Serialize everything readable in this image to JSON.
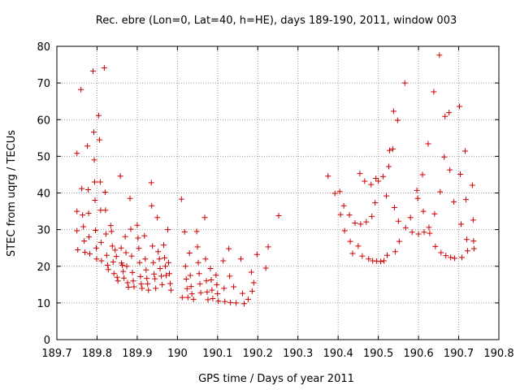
{
  "chart_data": {
    "type": "scatter",
    "title": "Rec. ebre (Lon=0, Lat=40, h=HE), days 189-190, 2011, window 003",
    "xlabel": "GPS time / Days of year 2011",
    "ylabel": "STEC from uqrg / TECUs",
    "xlim": [
      189.7,
      190.8
    ],
    "ylim": [
      0,
      80
    ],
    "xticks": [
      189.7,
      189.8,
      189.9,
      190,
      190.1,
      190.2,
      190.3,
      190.4,
      190.5,
      190.6,
      190.7,
      190.8
    ],
    "xtick_labels": [
      "189.7",
      "189.8",
      "189.9",
      "190",
      "190.1",
      "190.2",
      "190.3",
      "190.4",
      "190.5",
      "190.6",
      "190.7",
      "190.8"
    ],
    "yticks": [
      0,
      10,
      20,
      30,
      40,
      50,
      60,
      70,
      80
    ],
    "ytick_labels": [
      "0",
      "10",
      "20",
      "30",
      "40",
      "50",
      "60",
      "70",
      "80"
    ],
    "grid": true,
    "marker": "+",
    "color": "#cc0000",
    "points": [
      [
        189.75,
        50.8
      ],
      [
        189.75,
        35.0
      ],
      [
        189.75,
        29.7
      ],
      [
        189.752,
        24.5
      ],
      [
        189.76,
        68.2
      ],
      [
        189.762,
        41.2
      ],
      [
        189.764,
        34.0
      ],
      [
        189.766,
        30.8
      ],
      [
        189.768,
        26.9
      ],
      [
        189.77,
        23.8
      ],
      [
        189.776,
        52.8
      ],
      [
        189.778,
        40.9
      ],
      [
        189.779,
        34.5
      ],
      [
        189.78,
        28.0
      ],
      [
        189.782,
        23.4
      ],
      [
        189.79,
        73.2
      ],
      [
        189.792,
        56.6
      ],
      [
        189.793,
        49.0
      ],
      [
        189.794,
        43.0
      ],
      [
        189.795,
        38.0
      ],
      [
        189.796,
        29.8
      ],
      [
        189.798,
        25.0
      ],
      [
        189.799,
        22.0
      ],
      [
        189.804,
        61.1
      ],
      [
        189.806,
        54.5
      ],
      [
        189.808,
        43.0
      ],
      [
        189.809,
        35.3
      ],
      [
        189.81,
        26.5
      ],
      [
        189.811,
        21.5
      ],
      [
        189.818,
        74.1
      ],
      [
        189.82,
        40.2
      ],
      [
        189.821,
        35.3
      ],
      [
        189.822,
        28.8
      ],
      [
        189.824,
        23.0
      ],
      [
        189.826,
        20.3
      ],
      [
        189.828,
        19.1
      ],
      [
        189.834,
        31.1
      ],
      [
        189.836,
        29.5
      ],
      [
        189.838,
        25.5
      ],
      [
        189.84,
        21.2
      ],
      [
        189.842,
        18.0
      ],
      [
        189.845,
        24.4
      ],
      [
        189.848,
        22.7
      ],
      [
        189.85,
        17.0
      ],
      [
        189.852,
        16.0
      ],
      [
        189.858,
        44.6
      ],
      [
        189.86,
        25.0
      ],
      [
        189.861,
        20.9
      ],
      [
        189.863,
        20.3
      ],
      [
        189.865,
        18.6
      ],
      [
        189.867,
        16.8
      ],
      [
        189.87,
        28.1
      ],
      [
        189.872,
        23.7
      ],
      [
        189.874,
        20.0
      ],
      [
        189.876,
        15.5
      ],
      [
        189.878,
        14.3
      ],
      [
        189.882,
        38.5
      ],
      [
        189.884,
        30.1
      ],
      [
        189.886,
        22.8
      ],
      [
        189.888,
        18.3
      ],
      [
        189.89,
        16.0
      ],
      [
        189.892,
        14.4
      ],
      [
        189.9,
        31.2
      ],
      [
        189.902,
        27.7
      ],
      [
        189.904,
        24.9
      ],
      [
        189.906,
        21.0
      ],
      [
        189.908,
        17.2
      ],
      [
        189.91,
        15.2
      ],
      [
        189.912,
        14.0
      ],
      [
        189.918,
        28.3
      ],
      [
        189.92,
        22.0
      ],
      [
        189.922,
        19.0
      ],
      [
        189.924,
        16.7
      ],
      [
        189.926,
        15.2
      ],
      [
        189.928,
        13.5
      ],
      [
        189.935,
        42.8
      ],
      [
        189.936,
        36.5
      ],
      [
        189.938,
        25.5
      ],
      [
        189.94,
        21.0
      ],
      [
        189.942,
        17.9
      ],
      [
        189.944,
        16.6
      ],
      [
        189.946,
        14.0
      ],
      [
        189.95,
        33.3
      ],
      [
        189.952,
        24.0
      ],
      [
        189.955,
        22.0
      ],
      [
        189.957,
        19.4
      ],
      [
        189.96,
        17.3
      ],
      [
        189.962,
        15.0
      ],
      [
        189.966,
        25.8
      ],
      [
        189.968,
        22.3
      ],
      [
        189.97,
        20.0
      ],
      [
        189.972,
        17.5
      ],
      [
        189.976,
        30.0
      ],
      [
        189.978,
        21.0
      ],
      [
        189.98,
        18.0
      ],
      [
        189.982,
        15.3
      ],
      [
        189.984,
        13.5
      ],
      [
        190.01,
        38.3
      ],
      [
        190.012,
        11.5
      ],
      [
        190.018,
        29.4
      ],
      [
        190.02,
        20.0
      ],
      [
        190.022,
        16.5
      ],
      [
        190.024,
        13.9
      ],
      [
        190.026,
        11.5
      ],
      [
        190.03,
        23.6
      ],
      [
        190.032,
        17.5
      ],
      [
        190.034,
        14.5
      ],
      [
        190.036,
        12.5
      ],
      [
        190.04,
        11.0
      ],
      [
        190.048,
        29.5
      ],
      [
        190.05,
        25.3
      ],
      [
        190.052,
        21.0
      ],
      [
        190.054,
        18.0
      ],
      [
        190.056,
        15.2
      ],
      [
        190.058,
        12.8
      ],
      [
        190.068,
        33.3
      ],
      [
        190.07,
        22.0
      ],
      [
        190.072,
        16.0
      ],
      [
        190.074,
        13.0
      ],
      [
        190.076,
        10.9
      ],
      [
        190.082,
        19.4
      ],
      [
        190.084,
        16.3
      ],
      [
        190.086,
        13.5
      ],
      [
        190.088,
        11.2
      ],
      [
        190.096,
        17.6
      ],
      [
        190.098,
        15.0
      ],
      [
        190.1,
        12.5
      ],
      [
        190.102,
        10.5
      ],
      [
        190.114,
        21.5
      ],
      [
        190.116,
        14.0
      ],
      [
        190.118,
        10.4
      ],
      [
        190.128,
        24.8
      ],
      [
        190.13,
        17.3
      ],
      [
        190.132,
        10.1
      ],
      [
        190.14,
        14.4
      ],
      [
        190.146,
        10.0
      ],
      [
        190.158,
        22.0
      ],
      [
        190.162,
        12.6
      ],
      [
        190.166,
        9.8
      ],
      [
        190.176,
        11.0
      ],
      [
        190.184,
        18.4
      ],
      [
        190.186,
        13.2
      ],
      [
        190.19,
        15.5
      ],
      [
        190.198,
        23.2
      ],
      [
        190.22,
        19.5
      ],
      [
        190.226,
        25.3
      ],
      [
        190.252,
        33.8
      ],
      [
        190.375,
        44.6
      ],
      [
        190.392,
        39.9
      ],
      [
        190.404,
        40.4
      ],
      [
        190.406,
        34.1
      ],
      [
        190.414,
        36.5
      ],
      [
        190.416,
        29.7
      ],
      [
        190.428,
        34.0
      ],
      [
        190.43,
        26.8
      ],
      [
        190.436,
        23.5
      ],
      [
        190.442,
        31.8
      ],
      [
        190.45,
        25.5
      ],
      [
        190.454,
        45.3
      ],
      [
        190.456,
        31.5
      ],
      [
        190.46,
        22.8
      ],
      [
        190.466,
        43.2
      ],
      [
        190.47,
        32.1
      ],
      [
        190.476,
        22.0
      ],
      [
        190.482,
        42.3
      ],
      [
        190.484,
        33.6
      ],
      [
        190.486,
        21.5
      ],
      [
        190.492,
        37.3
      ],
      [
        190.494,
        44.0
      ],
      [
        190.496,
        21.4
      ],
      [
        190.5,
        43.2
      ],
      [
        190.506,
        21.3
      ],
      [
        190.512,
        44.5
      ],
      [
        190.514,
        21.5
      ],
      [
        190.52,
        39.2
      ],
      [
        190.522,
        23.0
      ],
      [
        190.526,
        47.2
      ],
      [
        190.528,
        51.6
      ],
      [
        190.536,
        52.0
      ],
      [
        190.538,
        62.3
      ],
      [
        190.54,
        36.0
      ],
      [
        190.542,
        24.0
      ],
      [
        190.548,
        59.8
      ],
      [
        190.55,
        32.3
      ],
      [
        190.552,
        26.8
      ],
      [
        190.566,
        70.0
      ],
      [
        190.568,
        30.5
      ],
      [
        190.58,
        33.3
      ],
      [
        190.584,
        29.3
      ],
      [
        190.596,
        40.7
      ],
      [
        190.598,
        38.5
      ],
      [
        190.6,
        28.8
      ],
      [
        190.61,
        45.0
      ],
      [
        190.612,
        35.0
      ],
      [
        190.614,
        29.3
      ],
      [
        190.624,
        53.4
      ],
      [
        190.626,
        30.6
      ],
      [
        190.628,
        29.0
      ],
      [
        190.638,
        67.6
      ],
      [
        190.64,
        34.3
      ],
      [
        190.642,
        25.4
      ],
      [
        190.652,
        77.6
      ],
      [
        190.654,
        40.3
      ],
      [
        190.656,
        23.7
      ],
      [
        190.664,
        49.8
      ],
      [
        190.666,
        60.9
      ],
      [
        190.668,
        22.9
      ],
      [
        190.676,
        61.9
      ],
      [
        190.678,
        46.3
      ],
      [
        190.68,
        22.4
      ],
      [
        190.688,
        37.6
      ],
      [
        190.69,
        22.2
      ],
      [
        190.702,
        63.6
      ],
      [
        190.704,
        45.1
      ],
      [
        190.706,
        31.5
      ],
      [
        190.708,
        22.4
      ],
      [
        190.716,
        51.4
      ],
      [
        190.718,
        38.2
      ],
      [
        190.72,
        27.3
      ],
      [
        190.722,
        24.2
      ],
      [
        190.734,
        42.1
      ],
      [
        190.736,
        32.6
      ],
      [
        190.737,
        26.9
      ],
      [
        190.738,
        24.8
      ]
    ]
  }
}
